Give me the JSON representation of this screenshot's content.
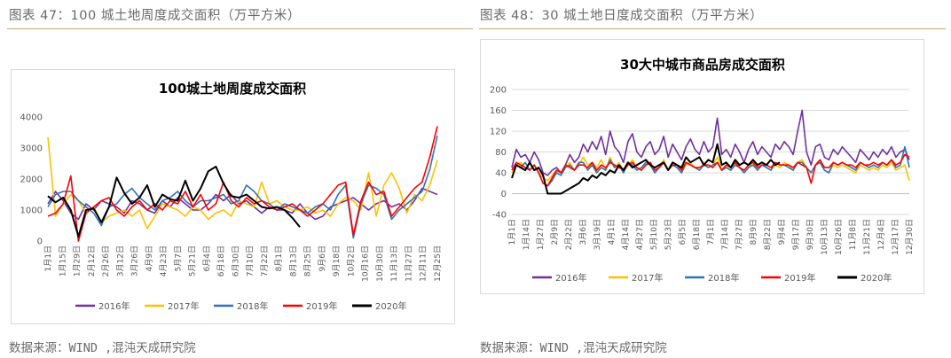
{
  "left": {
    "figure_title": "图表 47：100 城土地周度成交面积（万平方米）",
    "source": "数据来源：WIND ,混沌天成研究院"
  },
  "right": {
    "figure_title": "图表 48：30 城土地日度成交面积（万平方米）",
    "source": "数据来源：WIND ,混沌天成研究院"
  },
  "chart_data": [
    {
      "type": "line",
      "title": "100城土地周度成交面积",
      "ylim": [
        0,
        4000
      ],
      "y_ticks": [
        "0",
        "1000",
        "2000",
        "3000",
        "4000"
      ],
      "grid": false,
      "legend_position": "bottom",
      "x_tick_labels": [
        "1月1日",
        "1月15日",
        "1月29日",
        "2月12日",
        "2月26日",
        "3月12日",
        "3月26日",
        "4月9日",
        "4月23日",
        "5月7日",
        "5月21日",
        "6月4日",
        "6月18日",
        "6月30日",
        "7月10日",
        "7月22日",
        "8月1日",
        "8月13日",
        "8月25日",
        "9月6日",
        "9月18日",
        "10月2日",
        "10月16日",
        "10月30日",
        "11月13日",
        "11月27日",
        "12月11日",
        "12月25日"
      ],
      "series": [
        {
          "name": "2016年",
          "color": "#7030a0",
          "values": [
            1200,
            1600,
            1300,
            900,
            700,
            1200,
            1000,
            1300,
            1200,
            1100,
            900,
            1300,
            1200,
            1000,
            900,
            1300,
            1100,
            1400,
            1200,
            1000,
            1000,
            1200,
            1500,
            1300,
            1500,
            1200,
            1300,
            1100,
            900,
            1100,
            1000,
            1000,
            900,
            1200,
            900,
            700,
            800,
            1100,
            1200,
            1300,
            1400,
            1200,
            1000,
            1200,
            1300,
            1100,
            1200,
            1000,
            1300,
            1700,
            1600,
            1500
          ]
        },
        {
          "name": "2017年",
          "color": "#ffc000",
          "values": [
            3350,
            800,
            1200,
            1500,
            1300,
            900,
            1100,
            600,
            800,
            900,
            1000,
            800,
            1000,
            400,
            800,
            1200,
            1100,
            1000,
            800,
            1100,
            1000,
            700,
            900,
            1000,
            800,
            1300,
            1200,
            1100,
            1900,
            1200,
            1300,
            1100,
            1000,
            1000,
            1100,
            900,
            1000,
            800,
            1200,
            1400,
            1300,
            1000,
            2200,
            800,
            1800,
            2200,
            1700,
            900,
            1500,
            1300,
            1800,
            2600
          ]
        },
        {
          "name": "2018年",
          "color": "#2e75b6",
          "values": [
            1100,
            1500,
            1600,
            1600,
            1300,
            1100,
            900,
            500,
            1100,
            1200,
            1500,
            1700,
            1400,
            1200,
            1000,
            1300,
            1400,
            1600,
            1300,
            1100,
            1300,
            1300,
            1400,
            1500,
            1200,
            1300,
            1800,
            1600,
            1300,
            1200,
            1000,
            1200,
            1100,
            1000,
            900,
            1100,
            1200,
            1000,
            1500,
            1800,
            100,
            1200,
            1800,
            1700,
            1500,
            700,
            1000,
            1200,
            1400,
            1600,
            2300,
            3400
          ]
        },
        {
          "name": "2019年",
          "color": "#ff0000",
          "values": [
            800,
            900,
            1200,
            2100,
            0,
            900,
            1100,
            1300,
            1400,
            1000,
            800,
            1100,
            1300,
            1000,
            1200,
            1000,
            1300,
            1200,
            1600,
            1100,
            1500,
            1000,
            1200,
            1900,
            1300,
            1100,
            1400,
            1200,
            1300,
            1100,
            1000,
            1100,
            1200,
            1000,
            800,
            1000,
            1200,
            1500,
            1800,
            1900,
            200,
            1300,
            1900,
            1500,
            1600,
            800,
            1100,
            1400,
            1700,
            1900,
            2700,
            3700
          ]
        },
        {
          "name": "2020年",
          "color": "#000000",
          "values": [
            1450,
            1250,
            1400,
            1000,
            150,
            1000,
            1050,
            600,
            1100,
            2050,
            1550,
            1200,
            1400,
            1800,
            1100,
            1500,
            1350,
            1300,
            1950,
            1300,
            1700,
            2250,
            2400,
            1850,
            1450,
            1400,
            1500,
            1300,
            1100,
            1050,
            1100,
            1000,
            750,
            450
          ]
        }
      ]
    },
    {
      "type": "line",
      "title": "30大中城市商品房成交面积",
      "ylim": [
        -40,
        200
      ],
      "y_ticks": [
        "-40",
        "0",
        "40",
        "80",
        "120",
        "160",
        "200"
      ],
      "grid": true,
      "legend_position": "bottom",
      "x_tick_labels": [
        "1月1日",
        "1月14日",
        "1月27日",
        "2月9日",
        "2月22日",
        "3月6日",
        "3月19日",
        "4月1日",
        "4月14日",
        "4月27日",
        "5月10日",
        "5月23日",
        "6月5日",
        "6月18日",
        "7月1日",
        "7月14日",
        "7月27日",
        "8月9日",
        "8月22日",
        "9月4日",
        "9月17日",
        "9月30日",
        "10月13日",
        "10月26日",
        "11月8日",
        "11月21日",
        "12月4日",
        "12月17日",
        "12月30日"
      ],
      "series": [
        {
          "name": "2016年",
          "color": "#7030a0",
          "values": [
            50,
            85,
            70,
            75,
            60,
            80,
            65,
            40,
            35,
            45,
            50,
            40,
            55,
            75,
            60,
            70,
            95,
            80,
            100,
            85,
            110,
            75,
            120,
            90,
            80,
            60,
            100,
            115,
            80,
            70,
            90,
            100,
            75,
            85,
            110,
            70,
            95,
            80,
            65,
            90,
            105,
            85,
            75,
            100,
            80,
            90,
            145,
            75,
            85,
            70,
            95,
            80,
            60,
            85,
            100,
            75,
            90,
            80,
            70,
            95,
            85,
            100,
            90,
            75,
            120,
            160,
            80,
            55,
            90,
            95,
            70,
            65,
            85,
            75,
            90,
            80,
            70,
            60,
            85,
            75,
            65,
            80,
            70,
            85,
            75,
            90,
            70,
            80,
            85,
            65
          ]
        },
        {
          "name": "2017年",
          "color": "#ffc000",
          "values": [
            40,
            55,
            60,
            50,
            45,
            55,
            40,
            30,
            25,
            35,
            45,
            40,
            50,
            60,
            45,
            55,
            70,
            55,
            60,
            50,
            65,
            45,
            70,
            50,
            60,
            40,
            55,
            65,
            50,
            45,
            55,
            60,
            40,
            50,
            65,
            45,
            55,
            50,
            40,
            55,
            60,
            50,
            45,
            60,
            50,
            55,
            70,
            45,
            50,
            45,
            55,
            50,
            40,
            50,
            60,
            45,
            55,
            50,
            45,
            55,
            50,
            60,
            55,
            45,
            60,
            65,
            50,
            40,
            55,
            60,
            45,
            40,
            55,
            50,
            55,
            50,
            45,
            40,
            55,
            50,
            45,
            50,
            45,
            55,
            50,
            60,
            45,
            50,
            55,
            25
          ]
        },
        {
          "name": "2018年",
          "color": "#2e75b6",
          "values": [
            45,
            55,
            50,
            60,
            45,
            55,
            40,
            20,
            15,
            25,
            40,
            35,
            50,
            55,
            45,
            60,
            60,
            45,
            55,
            40,
            50,
            45,
            65,
            50,
            55,
            40,
            60,
            55,
            45,
            50,
            60,
            55,
            40,
            50,
            60,
            45,
            55,
            50,
            40,
            60,
            55,
            50,
            45,
            55,
            50,
            55,
            60,
            45,
            50,
            45,
            55,
            50,
            40,
            50,
            55,
            45,
            55,
            50,
            45,
            60,
            55,
            55,
            50,
            45,
            60,
            60,
            50,
            40,
            55,
            60,
            45,
            40,
            60,
            55,
            60,
            55,
            50,
            45,
            60,
            55,
            50,
            55,
            50,
            60,
            55,
            65,
            50,
            55,
            90,
            50
          ]
        },
        {
          "name": "2019年",
          "color": "#ff0000",
          "values": [
            45,
            60,
            55,
            50,
            45,
            55,
            40,
            20,
            15,
            30,
            45,
            40,
            55,
            50,
            45,
            55,
            55,
            50,
            60,
            45,
            55,
            50,
            60,
            55,
            50,
            45,
            55,
            60,
            50,
            45,
            55,
            60,
            45,
            50,
            60,
            45,
            55,
            55,
            45,
            60,
            55,
            50,
            50,
            55,
            55,
            50,
            60,
            45,
            55,
            50,
            60,
            50,
            45,
            55,
            60,
            50,
            55,
            55,
            50,
            60,
            55,
            55,
            55,
            50,
            60,
            55,
            50,
            20,
            55,
            65,
            50,
            50,
            60,
            55,
            60,
            55,
            55,
            50,
            60,
            55,
            55,
            60,
            55,
            60,
            55,
            65,
            55,
            60,
            75,
            70
          ]
        },
        {
          "name": "2020年",
          "color": "#000000",
          "values": [
            30,
            55,
            50,
            45,
            60,
            45,
            50,
            35,
            0,
            0,
            0,
            0,
            5,
            10,
            15,
            20,
            30,
            25,
            35,
            30,
            40,
            35,
            45,
            40,
            55,
            45,
            60,
            50,
            55,
            60,
            65,
            55,
            50,
            55,
            60,
            45,
            60,
            55,
            50,
            70,
            60,
            65,
            70,
            55,
            65,
            60,
            95,
            55,
            60,
            50,
            65,
            55,
            60,
            55,
            65,
            55,
            60,
            55,
            65,
            55,
            60
          ]
        }
      ]
    }
  ]
}
